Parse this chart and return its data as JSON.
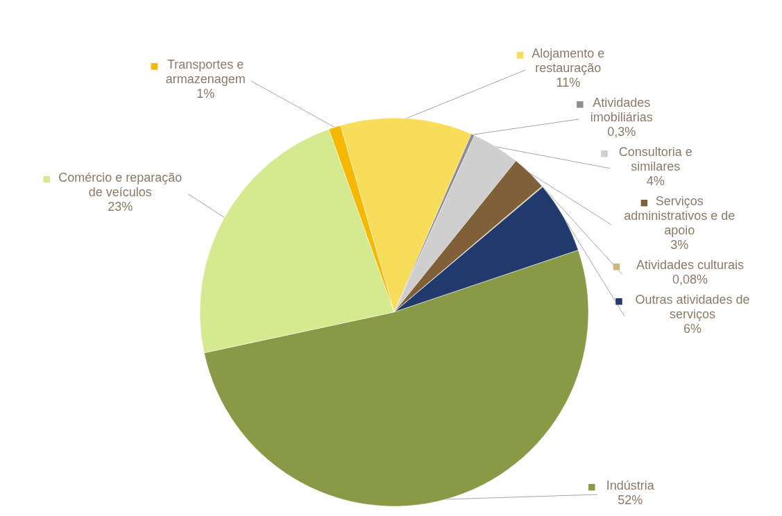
{
  "chart_data": {
    "type": "pie",
    "categories": [
      "Alojamento e restauração",
      "Atividades imobiliárias",
      "Consultoria e similares",
      "Serviços administrativos e de apoio",
      "Atividades culturais",
      "Outras atividades de serviços",
      "Indústria",
      "Comércio e reparação de veículos",
      "Transportes e armazenagem"
    ],
    "values": [
      11,
      0.3,
      4,
      3,
      0.08,
      6,
      52,
      23,
      1
    ],
    "value_labels": [
      "11%",
      "0,3%",
      "4%",
      "3%",
      "0,08%",
      "6%",
      "52%",
      "23%",
      "1%"
    ],
    "colors": [
      "#f7dd5a",
      "#8f8f8f",
      "#cfcfcf",
      "#7f6038",
      "#c9b67c",
      "#203a6d",
      "#889a45",
      "#d5e98f",
      "#f5b700"
    ],
    "legend": "right"
  }
}
